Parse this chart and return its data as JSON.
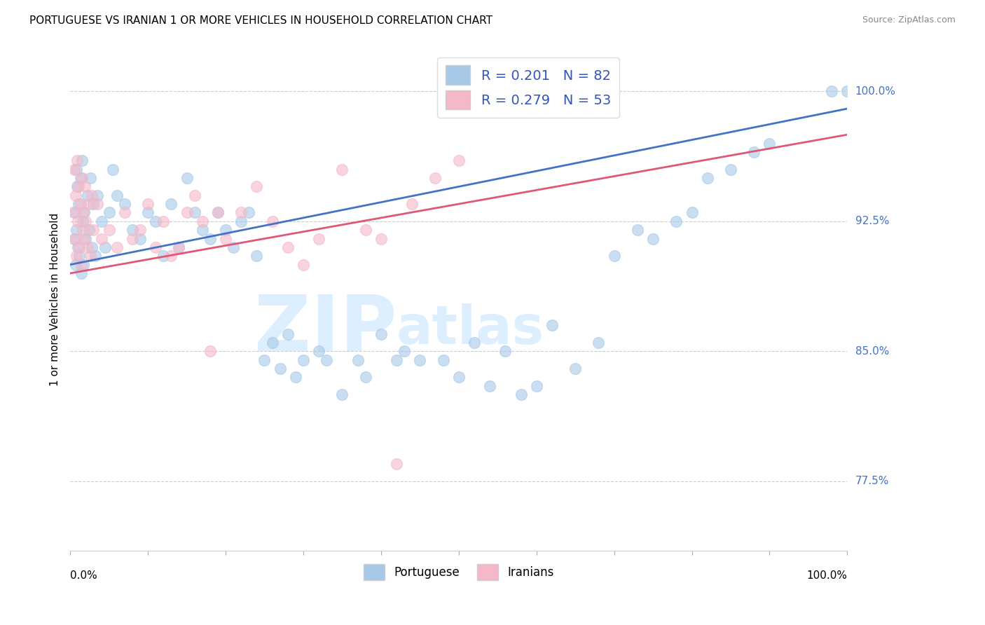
{
  "title": "PORTUGUESE VS IRANIAN 1 OR MORE VEHICLES IN HOUSEHOLD CORRELATION CHART",
  "source": "Source: ZipAtlas.com",
  "ylabel": "1 or more Vehicles in Household",
  "xlim": [
    0,
    100
  ],
  "ylim": [
    73.5,
    102.5
  ],
  "yticks": [
    77.5,
    85.0,
    92.5,
    100.0
  ],
  "portuguese_color": "#a8c8e8",
  "portuguese_edge": "#7aaad0",
  "iranian_color": "#f4b8c8",
  "iranian_edge": "#e890a8",
  "portuguese_line_color": "#4472c4",
  "iranian_line_color": "#e05878",
  "watermark_zip": "ZIP",
  "watermark_atlas": "atlas",
  "watermark_color": "#ddeeff",
  "portuguese_x": [
    0.5,
    0.6,
    0.7,
    0.8,
    0.8,
    0.9,
    1.0,
    1.1,
    1.2,
    1.3,
    1.4,
    1.5,
    1.6,
    1.7,
    1.8,
    2.0,
    2.2,
    2.4,
    2.6,
    2.8,
    3.0,
    3.2,
    3.5,
    4.0,
    4.5,
    5.0,
    5.5,
    6.0,
    7.0,
    8.0,
    9.0,
    10.0,
    11.0,
    12.0,
    13.0,
    14.0,
    15.0,
    16.0,
    17.0,
    18.0,
    19.0,
    20.0,
    21.0,
    22.0,
    23.0,
    24.0,
    25.0,
    26.0,
    27.0,
    28.0,
    29.0,
    30.0,
    32.0,
    33.0,
    35.0,
    37.0,
    38.0,
    40.0,
    42.0,
    43.0,
    45.0,
    48.0,
    50.0,
    52.0,
    54.0,
    56.0,
    58.0,
    60.0,
    62.0,
    65.0,
    68.0,
    70.0,
    73.0,
    75.0,
    78.0,
    80.0,
    82.0,
    85.0,
    88.0,
    90.0,
    98.0,
    100.0
  ],
  "portuguese_y": [
    91.5,
    93.0,
    90.0,
    95.5,
    92.0,
    94.5,
    91.0,
    93.5,
    90.5,
    95.0,
    89.5,
    96.0,
    92.5,
    90.0,
    93.0,
    91.5,
    94.0,
    92.0,
    95.0,
    91.0,
    93.5,
    90.5,
    94.0,
    92.5,
    91.0,
    93.0,
    95.5,
    94.0,
    93.5,
    92.0,
    91.5,
    93.0,
    92.5,
    90.5,
    93.5,
    91.0,
    95.0,
    93.0,
    92.0,
    91.5,
    93.0,
    92.0,
    91.0,
    92.5,
    93.0,
    90.5,
    84.5,
    85.5,
    84.0,
    86.0,
    83.5,
    84.5,
    85.0,
    84.5,
    82.5,
    84.5,
    83.5,
    86.0,
    84.5,
    85.0,
    84.5,
    84.5,
    83.5,
    85.5,
    83.0,
    85.0,
    82.5,
    83.0,
    86.5,
    84.0,
    85.5,
    90.5,
    92.0,
    91.5,
    92.5,
    93.0,
    95.0,
    95.5,
    96.5,
    97.0,
    100.0,
    100.0
  ],
  "iranian_x": [
    0.4,
    0.5,
    0.6,
    0.7,
    0.8,
    0.9,
    1.0,
    1.1,
    1.2,
    1.3,
    1.4,
    1.5,
    1.6,
    1.7,
    1.8,
    1.9,
    2.0,
    2.2,
    2.4,
    2.6,
    2.8,
    3.0,
    3.5,
    4.0,
    5.0,
    6.0,
    7.0,
    8.0,
    9.0,
    10.0,
    11.0,
    12.0,
    13.0,
    14.0,
    15.0,
    16.0,
    17.0,
    18.0,
    19.0,
    20.0,
    22.0,
    24.0,
    26.0,
    28.0,
    30.0,
    32.0,
    35.0,
    38.0,
    40.0,
    42.0,
    44.0,
    47.0,
    50.0
  ],
  "iranian_y": [
    93.0,
    95.5,
    91.5,
    94.0,
    90.5,
    96.0,
    92.5,
    94.5,
    91.0,
    93.5,
    90.0,
    95.0,
    92.0,
    93.0,
    91.5,
    94.5,
    92.5,
    91.0,
    93.5,
    90.5,
    94.0,
    92.0,
    93.5,
    91.5,
    92.0,
    91.0,
    93.0,
    91.5,
    92.0,
    93.5,
    91.0,
    92.5,
    90.5,
    91.0,
    93.0,
    94.0,
    92.5,
    85.0,
    93.0,
    91.5,
    93.0,
    94.5,
    92.5,
    91.0,
    90.0,
    91.5,
    95.5,
    92.0,
    91.5,
    78.5,
    93.5,
    95.0,
    96.0
  ]
}
